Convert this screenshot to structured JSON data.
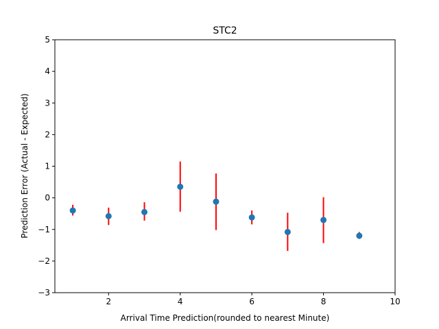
{
  "chart_data": {
    "type": "scatter",
    "title": "STC2",
    "xlabel": "Arrival Time Prediction(rounded to nearest Minute)",
    "ylabel": "Prediction Error (Actual - Expected)",
    "xlim": [
      0.5,
      10
    ],
    "ylim": [
      -3,
      5
    ],
    "xticks": [
      2,
      4,
      6,
      8,
      10
    ],
    "yticks": [
      -3,
      -2,
      -1,
      0,
      1,
      2,
      3,
      4,
      5
    ],
    "grid": false,
    "marker_color": "#1f77b4",
    "errorbar_color": "#ff0000",
    "points": [
      {
        "x": 1,
        "y": -0.4,
        "err_low": -0.56,
        "err_high": -0.22
      },
      {
        "x": 2,
        "y": -0.58,
        "err_low": -0.86,
        "err_high": -0.31
      },
      {
        "x": 3,
        "y": -0.45,
        "err_low": -0.72,
        "err_high": -0.14
      },
      {
        "x": 4,
        "y": 0.35,
        "err_low": -0.44,
        "err_high": 1.15
      },
      {
        "x": 5,
        "y": -0.12,
        "err_low": -1.02,
        "err_high": 0.77
      },
      {
        "x": 6,
        "y": -0.62,
        "err_low": -0.84,
        "err_high": -0.4
      },
      {
        "x": 7,
        "y": -1.08,
        "err_low": -1.68,
        "err_high": -0.47
      },
      {
        "x": 8,
        "y": -0.7,
        "err_low": -1.43,
        "err_high": 0.02
      },
      {
        "x": 9,
        "y": -1.2,
        "err_low": -1.3,
        "err_high": -1.08
      }
    ]
  }
}
